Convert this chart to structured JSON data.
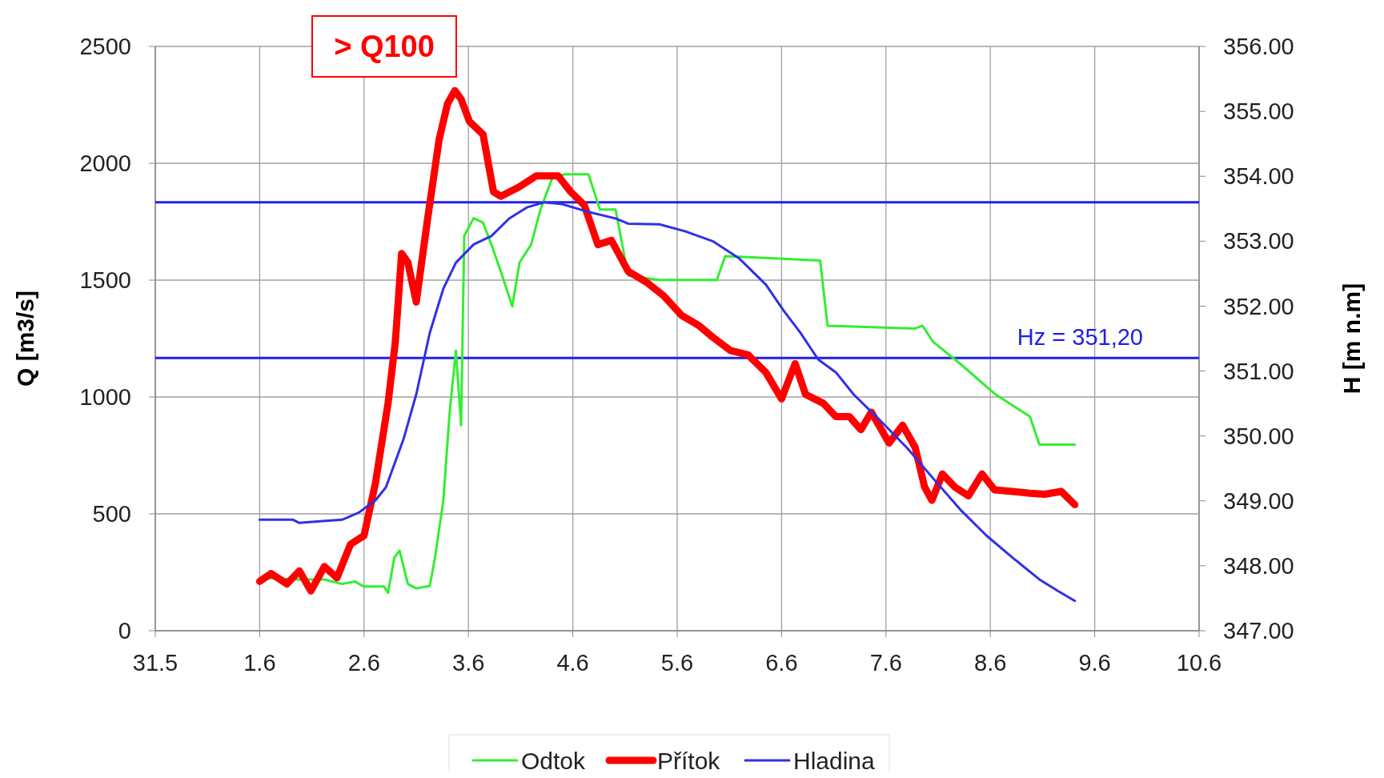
{
  "chart_data": {
    "type": "line",
    "ylabel": "Q [m3/s]",
    "y2label": "H [m n.m]",
    "annotations": [
      "> Q100"
    ],
    "xlim": [
      "--05-31",
      "--06-10"
    ],
    "xticks": [
      {
        "value": "--05-31",
        "label": "31.5"
      },
      {
        "value": "--06-01",
        "label": "1.6"
      },
      {
        "value": "--06-02",
        "label": "2.6"
      },
      {
        "value": "--06-03",
        "label": "3.6"
      },
      {
        "value": "--06-04",
        "label": "4.6"
      },
      {
        "value": "--06-05",
        "label": "5.6"
      },
      {
        "value": "--06-06",
        "label": "6.6"
      },
      {
        "value": "--06-07",
        "label": "7.6"
      },
      {
        "value": "--06-08",
        "label": "8.6"
      },
      {
        "value": "--06-09",
        "label": "9.6"
      },
      {
        "value": "--06-10",
        "label": "10.6"
      }
    ],
    "ylim": [
      0,
      2500
    ],
    "yticks": [
      0,
      500,
      1000,
      1500,
      2000,
      2500
    ],
    "y2lim": [
      347,
      356
    ],
    "y2ticks": [
      {
        "value": 347,
        "label": "347.00"
      },
      {
        "value": 348,
        "label": "348.00"
      },
      {
        "value": 349,
        "label": "349.00"
      },
      {
        "value": 350,
        "label": "350.00"
      },
      {
        "value": 351,
        "label": "351.00"
      },
      {
        "value": 352,
        "label": "352.00"
      },
      {
        "value": 353,
        "label": "353.00"
      },
      {
        "value": 354,
        "label": "354.00"
      },
      {
        "value": 355,
        "label": "355.00"
      },
      {
        "value": 356,
        "label": "356.00"
      }
    ],
    "grid": true,
    "legend": "bottom",
    "marker": "none",
    "ref_lines": [
      {
        "axis": "y2",
        "value": 353.6,
        "color": "#2020e8"
      },
      {
        "axis": "y2",
        "value": 351.2,
        "label": "Hz = 351,20",
        "color": "#2020e8"
      }
    ],
    "series": [
      {
        "name": "Odtok",
        "color": "#33ee33",
        "x": [
          "--06-01T00:00",
          "--06-01T08:38",
          "--06-01T14:53",
          "--06-01T18:58",
          "--06-01T21:50",
          "--06-02T00:00",
          "--06-02T04:34",
          "--06-02T05:31",
          "--06-02T06:58",
          "--06-02T08:10",
          "--06-02T10:05",
          "--06-02T12:00",
          "--06-02T15:07",
          "--06-02T16:19",
          "--06-02T18:14",
          "--06-02T19:41",
          "--06-02T21:07",
          "--06-02T22:19",
          "--06-02T23:02",
          "--06-03T01:12",
          "--06-03T03:22",
          "--06-03T05:17",
          "--06-03T07:26",
          "--06-03T10:05",
          "--06-03T11:46",
          "--06-03T14:24",
          "--06-03T16:34",
          "--06-03T19:12",
          "--06-03T22:05",
          "--06-04T03:36",
          "--06-04T06:14",
          "--06-04T09:50",
          "--06-04T12:43",
          "--06-04T19:55",
          "--06-05T09:07",
          "--06-05T11:02",
          "--06-05T20:24",
          "--06-06T08:53",
          "--06-06T10:34",
          "--06-06T16:34",
          "--06-07T06:43",
          "--06-07T08:24",
          "--06-07T10:48",
          "--06-07T17:02",
          "--06-08T01:12",
          "--06-08T09:07",
          "--06-08T11:17",
          "--06-08T19:26"
        ],
        "values": [
          226,
          219,
          219,
          200,
          211,
          189,
          189,
          162,
          313,
          343,
          200,
          181,
          192,
          313,
          558,
          935,
          1199,
          879,
          1689,
          1765,
          1746,
          1652,
          1538,
          1388,
          1576,
          1652,
          1802,
          1934,
          1953,
          1953,
          1802,
          1802,
          1520,
          1501,
          1501,
          1603,
          1595,
          1584,
          1305,
          1301,
          1293,
          1305,
          1237,
          1143,
          1011,
          916,
          796,
          796
        ]
      },
      {
        "name": "Přítok",
        "color": "#ff0000",
        "x": [
          "--06-01T00:00",
          "--06-01T02:38",
          "--06-01T06:14",
          "--06-01T09:07",
          "--06-01T11:46",
          "--06-01T14:53",
          "--06-01T17:46",
          "--06-01T20:53",
          "--06-02T00:00",
          "--06-02T02:38",
          "--06-02T05:31",
          "--06-02T07:12",
          "--06-02T08:38",
          "--06-02T10:05",
          "--06-02T12:00",
          "--06-02T14:38",
          "--06-02T17:17",
          "--06-02T19:12",
          "--06-02T20:53",
          "--06-02T22:19",
          "--06-03T00:14",
          "--06-03T03:22",
          "--06-03T05:46",
          "--06-03T07:26",
          "--06-03T11:31",
          "--06-03T15:36",
          "--06-03T20:38",
          "--06-03T23:31",
          "--06-04T02:38",
          "--06-04T05:46",
          "--06-04T08:53",
          "--06-04T12:43",
          "--06-04T16:48",
          "--06-04T20:53",
          "--06-05T00:58",
          "--06-05T05:02",
          "--06-05T08:10",
          "--06-05T12:14",
          "--06-05T16:19",
          "--06-05T20:24",
          "--06-06T00:00",
          "--06-06T03:07",
          "--06-06T05:31",
          "--06-06T09:36",
          "--06-06T12:29",
          "--06-06T15:36",
          "--06-06T18:14",
          "--06-06T20:38",
          "--06-07T00:43",
          "--06-07T03:50",
          "--06-07T06:43",
          "--06-07T08:53",
          "--06-07T10:34",
          "--06-07T12:58",
          "--06-07T15:50",
          "--06-07T18:58",
          "--06-07T22:05",
          "--06-08T00:58",
          "--06-08T05:02",
          "--06-08T09:07",
          "--06-08T12:29",
          "--06-08T16:19",
          "--06-08T19:26"
        ],
        "values": [
          211,
          245,
          200,
          256,
          170,
          275,
          226,
          370,
          407,
          633,
          973,
          1237,
          1614,
          1576,
          1406,
          1765,
          2104,
          2255,
          2311,
          2274,
          2179,
          2123,
          1878,
          1859,
          1897,
          1946,
          1946,
          1878,
          1821,
          1652,
          1670,
          1538,
          1493,
          1433,
          1350,
          1305,
          1256,
          1199,
          1180,
          1105,
          992,
          1143,
          1011,
          973,
          916,
          916,
          860,
          935,
          803,
          879,
          784,
          615,
          558,
          671,
          615,
          577,
          671,
          603,
          596,
          588,
          584,
          596,
          539
        ]
      },
      {
        "name": "Hladina",
        "color": "#3030e8",
        "axis": "y2",
        "x": [
          "--06-01T00:00",
          "--06-01T07:41",
          "--06-01T09:07",
          "--06-01T10:48",
          "--06-01T18:58",
          "--06-01T22:48",
          "--06-02T02:38",
          "--06-02T05:02",
          "--06-02T09:07",
          "--06-02T12:00",
          "--06-02T15:07",
          "--06-02T18:14",
          "--06-02T21:07",
          "--06-03T01:12",
          "--06-03T05:17",
          "--06-03T09:22",
          "--06-03T13:26",
          "--06-03T17:31",
          "--06-03T21:36",
          "--06-04T03:36",
          "--06-04T09:50",
          "--06-04T12:43",
          "--06-04T19:55",
          "--06-05T01:55",
          "--06-05T08:10",
          "--06-05T14:10",
          "--06-05T20:24",
          "--06-06T00:29",
          "--06-06T04:19",
          "--06-06T08:24",
          "--06-06T12:29",
          "--06-06T16:34",
          "--06-06T22:48",
          "--06-07T04:48",
          "--06-07T10:48",
          "--06-07T17:02",
          "--06-07T23:02",
          "--06-08T05:02",
          "--06-08T11:17",
          "--06-08T15:22",
          "--06-08T19:26"
        ],
        "values": [
          348.71,
          348.71,
          348.66,
          348.67,
          348.71,
          348.82,
          349.01,
          349.21,
          349.96,
          350.64,
          351.59,
          352.27,
          352.67,
          352.95,
          353.08,
          353.35,
          353.52,
          353.6,
          353.57,
          353.45,
          353.35,
          353.27,
          353.26,
          353.15,
          353.0,
          352.74,
          352.33,
          351.93,
          351.59,
          351.18,
          350.98,
          350.64,
          350.23,
          349.82,
          349.35,
          348.87,
          348.47,
          348.13,
          347.79,
          347.62,
          347.46
        ]
      }
    ]
  }
}
